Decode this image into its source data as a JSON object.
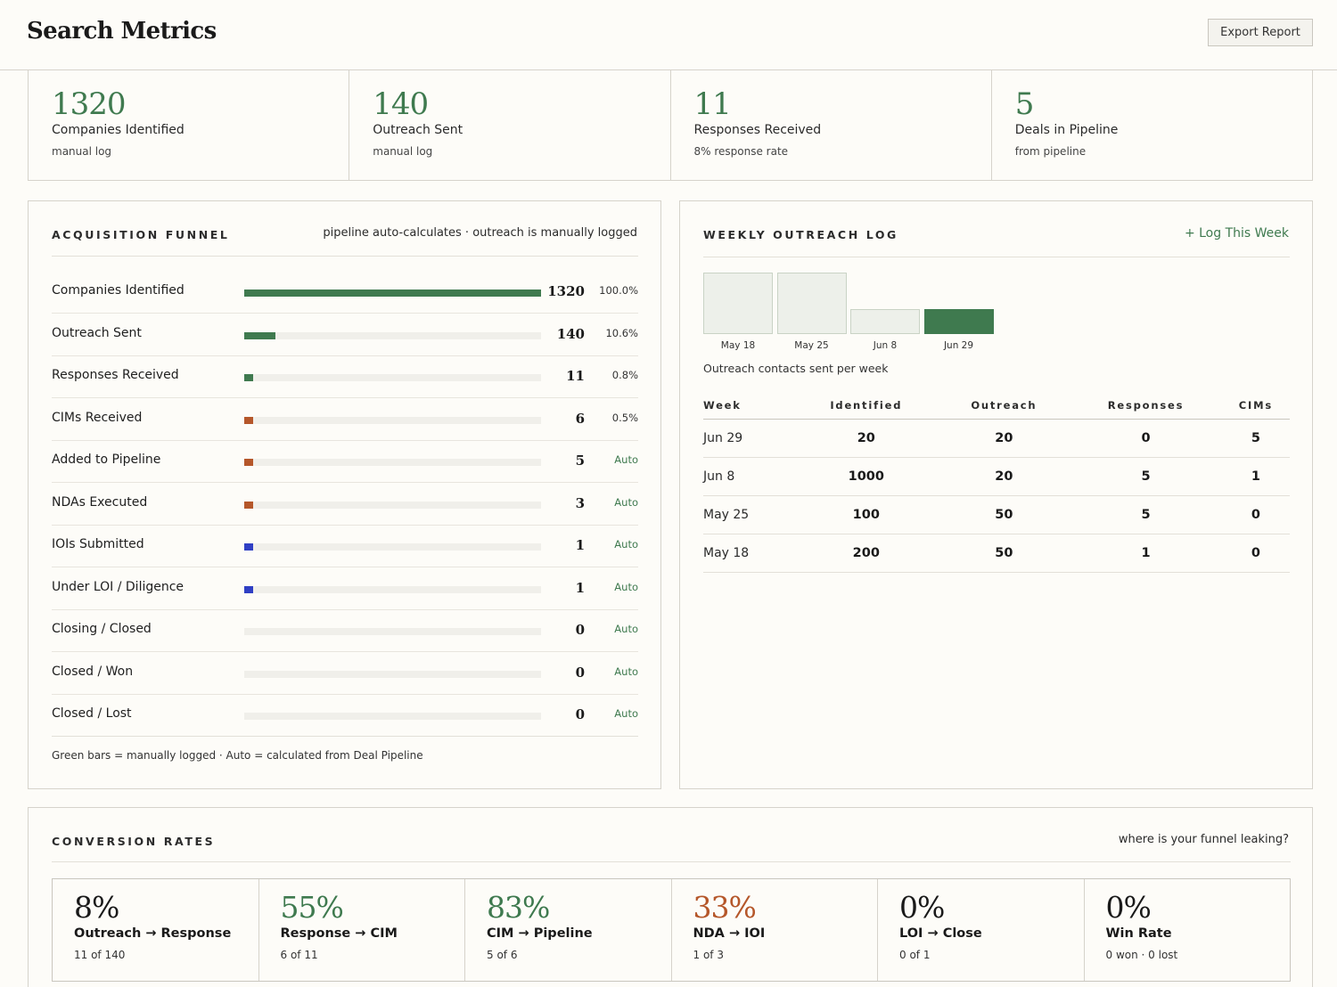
{
  "header": {
    "title": "Search Metrics",
    "export_label": "Export Report"
  },
  "stats": [
    {
      "value": "1320",
      "label": "Companies Identified",
      "sub": "manual log"
    },
    {
      "value": "140",
      "label": "Outreach Sent",
      "sub": "manual log"
    },
    {
      "value": "11",
      "label": "Responses Received",
      "sub": "8% response rate"
    },
    {
      "value": "5",
      "label": "Deals in Pipeline",
      "sub": "from pipeline"
    }
  ],
  "funnel": {
    "heading": "Acquisition Funnel",
    "note": "pipeline auto-calculates · outreach is manually logged",
    "footnote": "Green bars = manually logged · Auto = calculated from Deal Pipeline",
    "rows": [
      {
        "label": "Companies Identified",
        "count": "1320",
        "pct": "100.0%",
        "fill": 1.0,
        "color": "#3f7a4f"
      },
      {
        "label": "Outreach Sent",
        "count": "140",
        "pct": "10.6%",
        "fill": 0.106,
        "color": "#3f7a4f"
      },
      {
        "label": "Responses Received",
        "count": "11",
        "pct": "0.8%",
        "fill": 0.03,
        "color": "#3f7a4f"
      },
      {
        "label": "CIMs Received",
        "count": "6",
        "pct": "0.5%",
        "fill": 0.03,
        "color": "#b5572a"
      },
      {
        "label": "Added to Pipeline",
        "count": "5",
        "pct": "Auto",
        "fill": 0.03,
        "color": "#b5572a"
      },
      {
        "label": "NDAs Executed",
        "count": "3",
        "pct": "Auto",
        "fill": 0.03,
        "color": "#b5572a"
      },
      {
        "label": "IOIs Submitted",
        "count": "1",
        "pct": "Auto",
        "fill": 0.03,
        "color": "#2f3fc4"
      },
      {
        "label": "Under LOI / Diligence",
        "count": "1",
        "pct": "Auto",
        "fill": 0.03,
        "color": "#2f3fc4"
      },
      {
        "label": "Closing / Closed",
        "count": "0",
        "pct": "Auto",
        "fill": 0,
        "color": "#3f7a4f"
      },
      {
        "label": "Closed / Won",
        "count": "0",
        "pct": "Auto",
        "fill": 0,
        "color": "#3f7a4f"
      },
      {
        "label": "Closed / Lost",
        "count": "0",
        "pct": "Auto",
        "fill": 0,
        "color": "#3f7a4f"
      }
    ]
  },
  "weekly": {
    "heading": "Weekly Outreach Log",
    "action": "+ Log This Week",
    "chart_caption": "Outreach contacts sent per week",
    "chart_data": {
      "type": "bar",
      "categories": [
        "May 18",
        "May 25",
        "Jun 8",
        "Jun 29"
      ],
      "values": [
        50,
        50,
        20,
        20
      ],
      "highlight": "Jun 29"
    },
    "columns": [
      "Week",
      "Identified",
      "Outreach",
      "Responses",
      "CIMs"
    ],
    "rows": [
      [
        "Jun 29",
        "20",
        "20",
        "0",
        "5"
      ],
      [
        "Jun 8",
        "1000",
        "20",
        "5",
        "1"
      ],
      [
        "May 25",
        "100",
        "50",
        "5",
        "0"
      ],
      [
        "May 18",
        "200",
        "50",
        "1",
        "0"
      ]
    ]
  },
  "conversion": {
    "heading": "Conversion Rates",
    "note": "where is your funnel leaking?",
    "items": [
      {
        "value": "8%",
        "label": "Outreach → Response",
        "sub": "11 of 140",
        "color": "#1a1a1a"
      },
      {
        "value": "55%",
        "label": "Response → CIM",
        "sub": "6 of 11",
        "color": "#3f7a4f"
      },
      {
        "value": "83%",
        "label": "CIM → Pipeline",
        "sub": "5 of 6",
        "color": "#3f7a4f"
      },
      {
        "value": "33%",
        "label": "NDA → IOI",
        "sub": "1 of 3",
        "color": "#b5572a"
      },
      {
        "value": "0%",
        "label": "LOI → Close",
        "sub": "0 of 1",
        "color": "#1a1a1a"
      },
      {
        "value": "0%",
        "label": "Win Rate",
        "sub": "0 won · 0 lost",
        "color": "#1a1a1a"
      }
    ]
  }
}
